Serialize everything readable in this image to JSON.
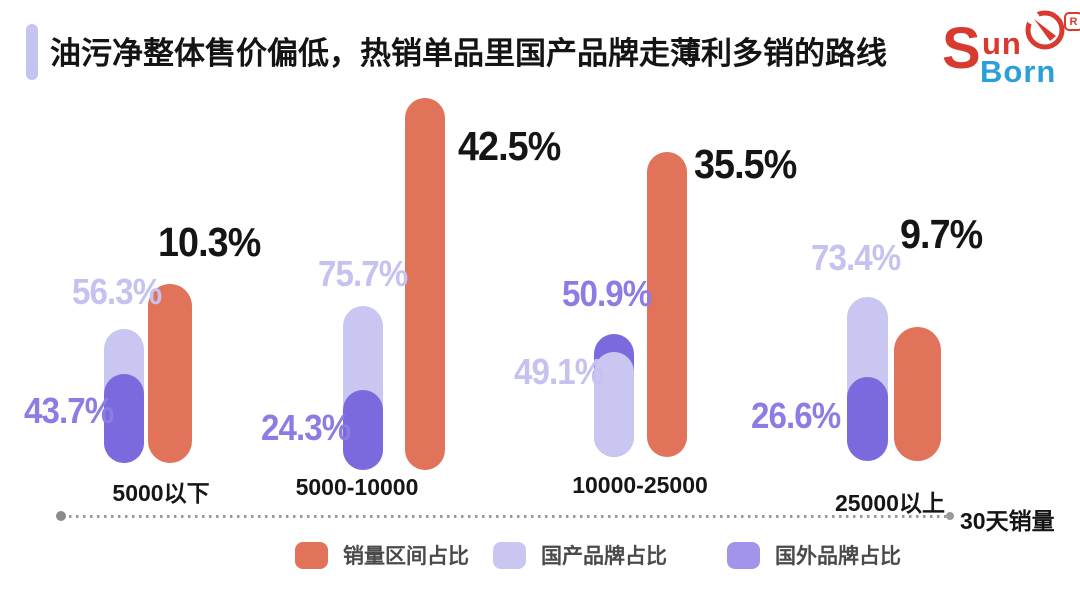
{
  "title": {
    "text": "油污净整体售价偏低，热销单品里国产品牌走薄利多销的路线"
  },
  "logo": {
    "s": "S",
    "un": "un",
    "born": "Born",
    "registered": "R"
  },
  "axis": {
    "label": "30天销量"
  },
  "legend": {
    "items": [
      {
        "label": "销量区间占比",
        "color": "#e0735a"
      },
      {
        "label": "国产品牌占比",
        "color": "#c9c6f2"
      },
      {
        "label": "国外品牌占比",
        "color": "#a294eb"
      }
    ]
  },
  "colors": {
    "orange": "#e0735a",
    "purple_light": "#c9c6f2",
    "purple_dark": "#7a6ade",
    "label_light": "#c5c2f1",
    "label_dark": "#8c7de4",
    "accent": "#c5c3f0"
  },
  "chart_data": {
    "type": "bar",
    "title": "油污净整体售价偏低，热销单品里国产品牌走薄利多销的路线",
    "categories": [
      "5000以下",
      "5000-10000",
      "10000-25000",
      "25000以上"
    ],
    "series": [
      {
        "name": "销量区间占比",
        "color": "#e0735a",
        "values": [
          10.3,
          42.5,
          35.5,
          9.7
        ]
      },
      {
        "name": "国产品牌占比",
        "color": "#c9c6f2",
        "values": [
          56.3,
          75.7,
          49.1,
          73.4
        ]
      },
      {
        "name": "国外品牌占比",
        "color": "#7a6ade",
        "values": [
          43.7,
          24.3,
          50.9,
          26.6
        ]
      }
    ],
    "value_suffix": "%",
    "xlabel": "30天销量",
    "legend_position": "bottom",
    "grid": false,
    "note": "bar heights are stylized infographic pills, not to a single scale"
  }
}
